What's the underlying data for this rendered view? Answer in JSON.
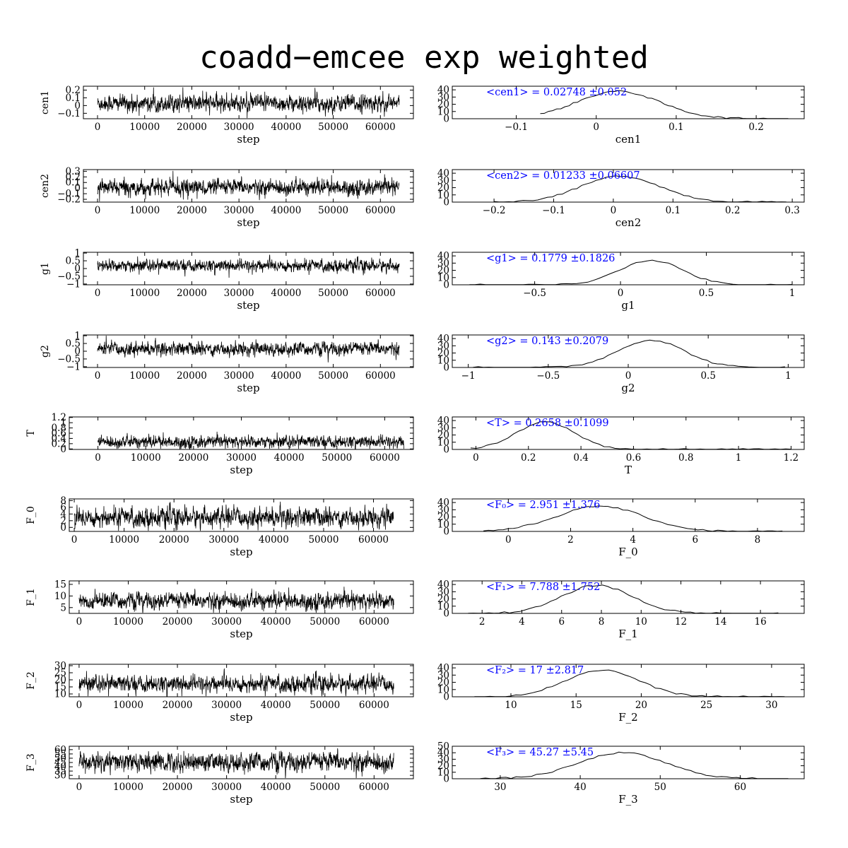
{
  "title": "coadd−emcee exp weighted",
  "chart_data": [
    {
      "type": "line",
      "name": "cen1",
      "role": "trace",
      "ylabel": "cen1",
      "xlabel": "step",
      "xlim": [
        -3000,
        67000
      ],
      "ylim": [
        -0.17,
        0.25
      ],
      "xticks": [
        0,
        10000,
        20000,
        30000,
        40000,
        50000,
        60000
      ],
      "yticks": [
        -0.1,
        0,
        0.1,
        0.2
      ],
      "ytick_labels": [
        "−0.1",
        "0",
        "0.1",
        "0.2"
      ],
      "n_steps": 64000,
      "mean": 0.02748,
      "sigma": 0.052
    },
    {
      "type": "line",
      "name": "cen1",
      "role": "histogram",
      "xlabel": "cen1",
      "xlim": [
        -0.18,
        0.26
      ],
      "ylim": [
        0,
        45
      ],
      "xticks": [
        -0.1,
        0,
        0.1,
        0.2
      ],
      "xtick_labels": [
        "−0.1",
        "0",
        "0.1",
        "0.2"
      ],
      "yticks": [
        0,
        10,
        20,
        30,
        40
      ],
      "annotation": "<cen1> = 0.02748 ±0.052",
      "mean": 0.02748,
      "sigma": 0.052,
      "peak": 38,
      "range": [
        -0.07,
        0.24
      ]
    },
    {
      "type": "line",
      "name": "cen2",
      "role": "trace",
      "ylabel": "cen2",
      "xlabel": "step",
      "xlim": [
        -3000,
        67000
      ],
      "ylim": [
        -0.25,
        0.33
      ],
      "xticks": [
        0,
        10000,
        20000,
        30000,
        40000,
        50000,
        60000
      ],
      "yticks": [
        -0.2,
        -0.1,
        0,
        0.1,
        0.2,
        0.3
      ],
      "ytick_labels": [
        "−0.2",
        "−0.1",
        "0",
        "0.1",
        "0.2",
        "0.3"
      ],
      "n_steps": 64000,
      "mean": 0.01233,
      "sigma": 0.06607
    },
    {
      "type": "line",
      "name": "cen2",
      "role": "histogram",
      "xlabel": "cen2",
      "xlim": [
        -0.27,
        0.32
      ],
      "ylim": [
        0,
        45
      ],
      "xticks": [
        -0.2,
        -0.1,
        0,
        0.1,
        0.2,
        0.3
      ],
      "xtick_labels": [
        "−0.2",
        "−0.1",
        "0",
        "0.1",
        "0.2",
        "0.3"
      ],
      "yticks": [
        0,
        10,
        20,
        30,
        40
      ],
      "annotation": "<cen2> = 0.01233 ±0.06607",
      "mean": 0.01233,
      "sigma": 0.06607,
      "peak": 36,
      "range": [
        -0.2,
        0.29
      ]
    },
    {
      "type": "line",
      "name": "g1",
      "role": "trace",
      "ylabel": "g1",
      "xlabel": "step",
      "xlim": [
        -3000,
        67000
      ],
      "ylim": [
        -1.05,
        1.05
      ],
      "xticks": [
        0,
        10000,
        20000,
        30000,
        40000,
        50000,
        60000
      ],
      "yticks": [
        -1,
        -0.5,
        0,
        0.5,
        1
      ],
      "ytick_labels": [
        "−1",
        "−0.5",
        "0",
        "0.5",
        "1"
      ],
      "n_steps": 64000,
      "mean": 0.1779,
      "sigma": 0.1826
    },
    {
      "type": "line",
      "name": "g1",
      "role": "histogram",
      "xlabel": "g1",
      "xlim": [
        -0.98,
        1.07
      ],
      "ylim": [
        0,
        45
      ],
      "xticks": [
        -0.5,
        0,
        0.5,
        1
      ],
      "xtick_labels": [
        "−0.5",
        "0",
        "0.5",
        "1"
      ],
      "yticks": [
        0,
        10,
        20,
        30,
        40
      ],
      "annotation": "<g1> = 0.1779 ±0.1826",
      "mean": 0.1779,
      "sigma": 0.1826,
      "peak": 34,
      "range": [
        -0.88,
        1.0
      ]
    },
    {
      "type": "line",
      "name": "g2",
      "role": "trace",
      "ylabel": "g2",
      "xlabel": "step",
      "xlim": [
        -3000,
        67000
      ],
      "ylim": [
        -1.05,
        1.05
      ],
      "xticks": [
        0,
        10000,
        20000,
        30000,
        40000,
        50000,
        60000
      ],
      "yticks": [
        -1,
        -0.5,
        0,
        0.5,
        1
      ],
      "ytick_labels": [
        "−1",
        "−0.5",
        "0",
        "0.5",
        "1"
      ],
      "n_steps": 64000,
      "mean": 0.143,
      "sigma": 0.2079
    },
    {
      "type": "line",
      "name": "g2",
      "role": "histogram",
      "xlabel": "g2",
      "xlim": [
        -1.1,
        1.1
      ],
      "ylim": [
        0,
        45
      ],
      "xticks": [
        -1,
        -0.5,
        0,
        0.5,
        1
      ],
      "xtick_labels": [
        "−1",
        "−0.5",
        "0",
        "0.5",
        "1"
      ],
      "yticks": [
        0,
        10,
        20,
        30,
        40
      ],
      "annotation": "<g2> = 0.143 ±0.2079",
      "mean": 0.143,
      "sigma": 0.2079,
      "peak": 38,
      "range": [
        -0.97,
        0.98
      ]
    },
    {
      "type": "line",
      "name": "T",
      "role": "trace",
      "ylabel": "T",
      "xlabel": "step",
      "xlim": [
        -6000,
        66000
      ],
      "ylim": [
        -0.02,
        1.22
      ],
      "xticks": [
        0,
        10000,
        20000,
        30000,
        40000,
        50000,
        60000
      ],
      "yticks": [
        0,
        0.2,
        0.4,
        0.6,
        0.8,
        1,
        1.2
      ],
      "ytick_labels": [
        "0",
        "0.2",
        "0.4",
        "0.6",
        "0.8",
        "1",
        "1.2"
      ],
      "n_steps": 64000,
      "mean": 0.2658,
      "sigma": 0.1099
    },
    {
      "type": "line",
      "name": "T",
      "role": "histogram",
      "xlabel": "T",
      "xlim": [
        -0.09,
        1.25
      ],
      "ylim": [
        0,
        45
      ],
      "xticks": [
        0,
        0.2,
        0.4,
        0.6,
        0.8,
        1,
        1.2
      ],
      "yticks": [
        0,
        10,
        20,
        30,
        40
      ],
      "annotation": "<T> = 0.2658 ±0.1099",
      "mean": 0.2658,
      "sigma": 0.1099,
      "peak": 38,
      "range": [
        -0.02,
        1.2
      ]
    },
    {
      "type": "line",
      "name": "F_0",
      "role": "trace",
      "ylabel": "F_0",
      "xlabel": "step",
      "xlim": [
        -1000,
        68000
      ],
      "ylim": [
        -1.2,
        8.5
      ],
      "xticks": [
        0,
        10000,
        20000,
        30000,
        40000,
        50000,
        60000
      ],
      "yticks": [
        0,
        2,
        4,
        6,
        8
      ],
      "n_steps": 64000,
      "mean": 2.951,
      "sigma": 1.376
    },
    {
      "type": "line",
      "name": "F_0",
      "role": "histogram",
      "xlabel": "F_0",
      "xlim": [
        -1.8,
        9.5
      ],
      "ylim": [
        0,
        45
      ],
      "xticks": [
        0,
        2,
        4,
        6,
        8
      ],
      "yticks": [
        0,
        10,
        20,
        30,
        40
      ],
      "annotation": "<F₀> = 2.951 ±1.376",
      "mean": 2.951,
      "sigma": 1.376,
      "peak": 35,
      "range": [
        -0.8,
        8.8
      ]
    },
    {
      "type": "line",
      "name": "F_1",
      "role": "trace",
      "ylabel": "F_1",
      "xlabel": "step",
      "xlim": [
        -2000,
        68000
      ],
      "ylim": [
        2.5,
        16.5
      ],
      "xticks": [
        0,
        10000,
        20000,
        30000,
        40000,
        50000,
        60000
      ],
      "yticks": [
        5,
        10,
        15
      ],
      "n_steps": 64000,
      "mean": 7.788,
      "sigma": 1.752
    },
    {
      "type": "line",
      "name": "F_1",
      "role": "histogram",
      "xlabel": "F_1",
      "xlim": [
        0.5,
        18.2
      ],
      "ylim": [
        0,
        45
      ],
      "xticks": [
        2,
        4,
        6,
        8,
        10,
        12,
        14,
        16
      ],
      "yticks": [
        0,
        10,
        20,
        30,
        40
      ],
      "annotation": "<F₁> = 7.788 ±1.752",
      "mean": 7.788,
      "sigma": 1.752,
      "peak": 39,
      "range": [
        1.3,
        16.9
      ]
    },
    {
      "type": "line",
      "name": "F_2",
      "role": "trace",
      "ylabel": "F_2",
      "xlabel": "step",
      "xlim": [
        -2000,
        68000
      ],
      "ylim": [
        8,
        31
      ],
      "xticks": [
        0,
        10000,
        20000,
        30000,
        40000,
        50000,
        60000
      ],
      "yticks": [
        10,
        15,
        20,
        25,
        30
      ],
      "n_steps": 64000,
      "mean": 17,
      "sigma": 2.817
    },
    {
      "type": "line",
      "name": "F_2",
      "role": "histogram",
      "xlabel": "F_2",
      "xlim": [
        5.5,
        32.5
      ],
      "ylim": [
        0,
        45
      ],
      "xticks": [
        10,
        15,
        20,
        25,
        30
      ],
      "yticks": [
        0,
        10,
        20,
        30,
        40
      ],
      "annotation": "<F₂> = 17 ±2.817",
      "mean": 17,
      "sigma": 2.817,
      "peak": 37,
      "range": [
        7.2,
        31.0
      ]
    },
    {
      "type": "line",
      "name": "F_3",
      "role": "trace",
      "ylabel": "F_3",
      "xlabel": "step",
      "xlim": [
        -2000,
        68000
      ],
      "ylim": [
        26,
        64
      ],
      "xticks": [
        0,
        10000,
        20000,
        30000,
        40000,
        50000,
        60000
      ],
      "yticks": [
        30,
        35,
        40,
        45,
        50,
        55,
        60
      ],
      "n_steps": 64000,
      "mean": 45.27,
      "sigma": 5.45
    },
    {
      "type": "line",
      "name": "F_3",
      "role": "histogram",
      "xlabel": "F_3",
      "xlim": [
        24,
        68
      ],
      "ylim": [
        0,
        50
      ],
      "xticks": [
        30,
        40,
        50,
        60
      ],
      "yticks": [
        0,
        10,
        20,
        30,
        40,
        50
      ],
      "annotation": "<F₃> = 45.27 ±5.45",
      "mean": 45.27,
      "sigma": 5.45,
      "peak": 40,
      "range": [
        27.5,
        66.0
      ]
    }
  ]
}
